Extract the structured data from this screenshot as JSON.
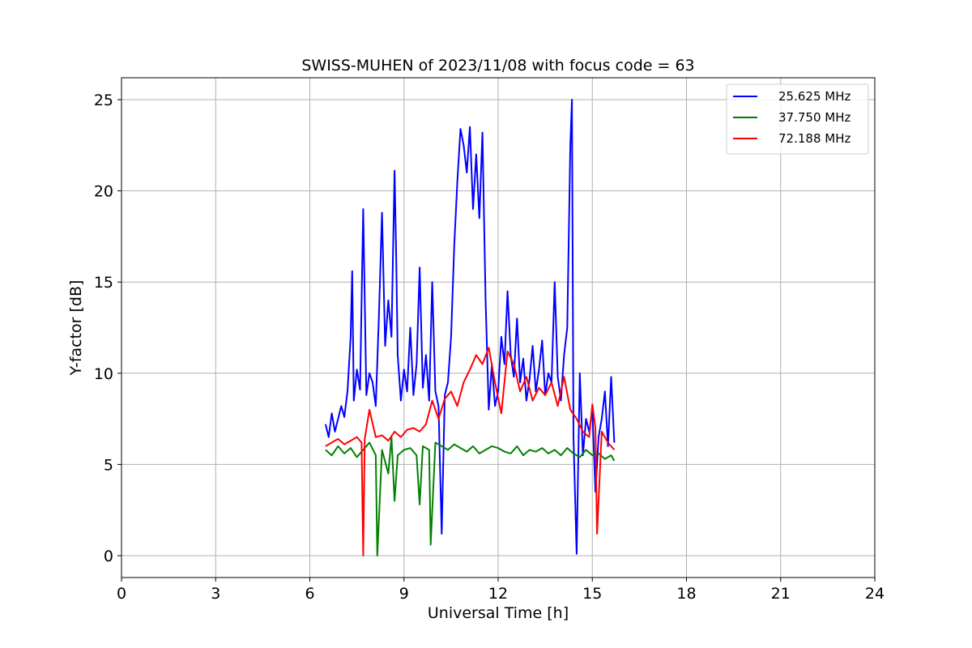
{
  "chart_data": {
    "type": "line",
    "title": "SWISS-MUHEN of 2023/11/08 with focus code = 63",
    "xlabel": "Universal Time [h]",
    "ylabel": "Y-factor [dB]",
    "xlim": [
      0,
      24
    ],
    "ylim": [
      -1.2,
      26.2
    ],
    "xticks": [
      0,
      3,
      6,
      9,
      12,
      15,
      18,
      21,
      24
    ],
    "yticks": [
      0,
      5,
      10,
      15,
      20,
      25
    ],
    "grid": true,
    "legend": "top-right",
    "series": [
      {
        "name": "25.625 MHz",
        "color": "#0000ff",
        "x": [
          6.5,
          6.6,
          6.7,
          6.8,
          6.9,
          7.0,
          7.1,
          7.2,
          7.3,
          7.35,
          7.4,
          7.5,
          7.6,
          7.7,
          7.8,
          7.9,
          8.0,
          8.1,
          8.2,
          8.3,
          8.4,
          8.5,
          8.6,
          8.7,
          8.75,
          8.8,
          8.9,
          9.0,
          9.1,
          9.2,
          9.3,
          9.4,
          9.5,
          9.6,
          9.7,
          9.8,
          9.9,
          10.0,
          10.1,
          10.2,
          10.3,
          10.4,
          10.5,
          10.6,
          10.7,
          10.8,
          10.9,
          11.0,
          11.1,
          11.2,
          11.3,
          11.4,
          11.5,
          11.6,
          11.7,
          11.8,
          11.9,
          12.0,
          12.1,
          12.2,
          12.3,
          12.4,
          12.5,
          12.6,
          12.7,
          12.8,
          12.9,
          13.0,
          13.1,
          13.2,
          13.3,
          13.4,
          13.5,
          13.6,
          13.7,
          13.8,
          13.9,
          14.0,
          14.1,
          14.2,
          14.3,
          14.35,
          14.4,
          14.5,
          14.6,
          14.7,
          14.8,
          14.9,
          15.0,
          15.1,
          15.2,
          15.3,
          15.4,
          15.5,
          15.6,
          15.7
        ],
        "y": [
          7.2,
          6.5,
          7.8,
          6.8,
          7.5,
          8.2,
          7.6,
          9.0,
          12.0,
          15.6,
          8.5,
          10.2,
          9.1,
          19.0,
          8.8,
          10.0,
          9.5,
          8.2,
          13.0,
          18.8,
          11.5,
          14.0,
          12.0,
          21.1,
          16.5,
          11.0,
          8.5,
          10.2,
          9.0,
          12.5,
          8.8,
          10.5,
          15.8,
          9.2,
          11.0,
          8.5,
          15.0,
          9.0,
          8.2,
          1.2,
          8.8,
          9.5,
          12.0,
          17.0,
          20.5,
          23.4,
          22.5,
          21.0,
          23.5,
          19.0,
          22.0,
          18.5,
          23.2,
          14.0,
          8.0,
          10.5,
          8.2,
          9.0,
          12.0,
          10.5,
          14.5,
          11.0,
          9.8,
          13.0,
          9.5,
          10.8,
          8.5,
          9.7,
          11.5,
          9.0,
          10.2,
          11.8,
          8.8,
          10.0,
          9.5,
          15.0,
          9.8,
          8.5,
          11.0,
          12.5,
          22.5,
          25.0,
          6.5,
          0.1,
          10.0,
          5.5,
          7.5,
          6.8,
          8.0,
          3.5,
          6.5,
          7.5,
          9.0,
          6.0,
          9.8,
          6.2
        ]
      },
      {
        "name": "37.750 MHz",
        "color": "#008000",
        "x": [
          6.5,
          6.7,
          6.9,
          7.1,
          7.3,
          7.5,
          7.7,
          7.9,
          8.1,
          8.15,
          8.3,
          8.5,
          8.6,
          8.7,
          8.8,
          9.0,
          9.2,
          9.4,
          9.5,
          9.6,
          9.8,
          9.85,
          10.0,
          10.2,
          10.4,
          10.6,
          10.8,
          11.0,
          11.2,
          11.4,
          11.6,
          11.8,
          12.0,
          12.2,
          12.4,
          12.6,
          12.8,
          13.0,
          13.2,
          13.4,
          13.6,
          13.8,
          14.0,
          14.2,
          14.4,
          14.6,
          14.8,
          15.0,
          15.2,
          15.4,
          15.6,
          15.7
        ],
        "y": [
          5.8,
          5.5,
          6.0,
          5.6,
          5.9,
          5.4,
          5.8,
          6.2,
          5.5,
          0.0,
          5.8,
          4.5,
          6.5,
          3.0,
          5.5,
          5.8,
          5.9,
          5.5,
          2.8,
          6.0,
          5.8,
          0.6,
          6.2,
          6.0,
          5.8,
          6.1,
          5.9,
          5.7,
          6.0,
          5.6,
          5.8,
          6.0,
          5.9,
          5.7,
          5.6,
          6.0,
          5.5,
          5.8,
          5.7,
          5.9,
          5.6,
          5.8,
          5.5,
          5.9,
          5.6,
          5.4,
          5.8,
          5.5,
          5.6,
          5.3,
          5.5,
          5.2
        ]
      },
      {
        "name": "72.188 MHz",
        "color": "#ff0000",
        "x": [
          6.5,
          6.7,
          6.9,
          7.1,
          7.3,
          7.5,
          7.65,
          7.7,
          7.75,
          7.9,
          8.1,
          8.3,
          8.5,
          8.7,
          8.9,
          9.1,
          9.3,
          9.5,
          9.7,
          9.9,
          10.1,
          10.3,
          10.5,
          10.7,
          10.9,
          11.1,
          11.3,
          11.5,
          11.7,
          11.9,
          12.1,
          12.3,
          12.5,
          12.7,
          12.9,
          13.1,
          13.3,
          13.5,
          13.7,
          13.9,
          14.1,
          14.3,
          14.5,
          14.7,
          14.9,
          15.0,
          15.1,
          15.15,
          15.3,
          15.5,
          15.7
        ],
        "y": [
          6.0,
          6.2,
          6.4,
          6.1,
          6.3,
          6.5,
          6.2,
          0.0,
          6.4,
          8.0,
          6.5,
          6.6,
          6.3,
          6.8,
          6.5,
          6.9,
          7.0,
          6.8,
          7.2,
          8.5,
          7.5,
          8.6,
          9.0,
          8.2,
          9.5,
          10.2,
          11.0,
          10.5,
          11.4,
          9.5,
          7.8,
          11.2,
          10.5,
          9.0,
          9.8,
          8.5,
          9.2,
          8.8,
          9.5,
          8.2,
          9.8,
          8.0,
          7.5,
          6.8,
          6.5,
          8.3,
          7.0,
          1.2,
          6.8,
          6.2,
          5.8
        ]
      }
    ]
  }
}
